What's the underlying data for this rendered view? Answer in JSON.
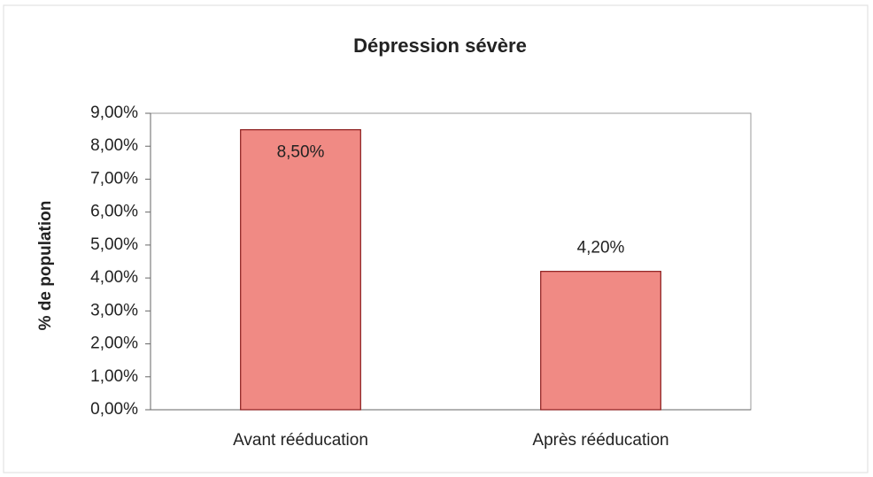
{
  "chart_data": {
    "type": "bar",
    "title": "Dépression sévère",
    "y_label": "% de population",
    "categories": [
      "Avant rééducation",
      "Après rééducation"
    ],
    "values": [
      8.5,
      4.2
    ],
    "value_labels": [
      "8,50%",
      "4,20%"
    ],
    "color": "#f08a84",
    "edge_color": "#8b1a1a",
    "ylim": [
      0,
      9
    ],
    "yticks": [
      {
        "value": 0,
        "label": "0,00%"
      },
      {
        "value": 1,
        "label": "1,00%"
      },
      {
        "value": 2,
        "label": "2,00%"
      },
      {
        "value": 3,
        "label": "3,00%"
      },
      {
        "value": 4,
        "label": "4,00%"
      },
      {
        "value": 5,
        "label": "5,00%"
      },
      {
        "value": 6,
        "label": "6,00%"
      },
      {
        "value": 7,
        "label": "7,00%"
      },
      {
        "value": 8,
        "label": "8,00%"
      },
      {
        "value": 9,
        "label": "9,00%"
      }
    ],
    "grid": false
  }
}
